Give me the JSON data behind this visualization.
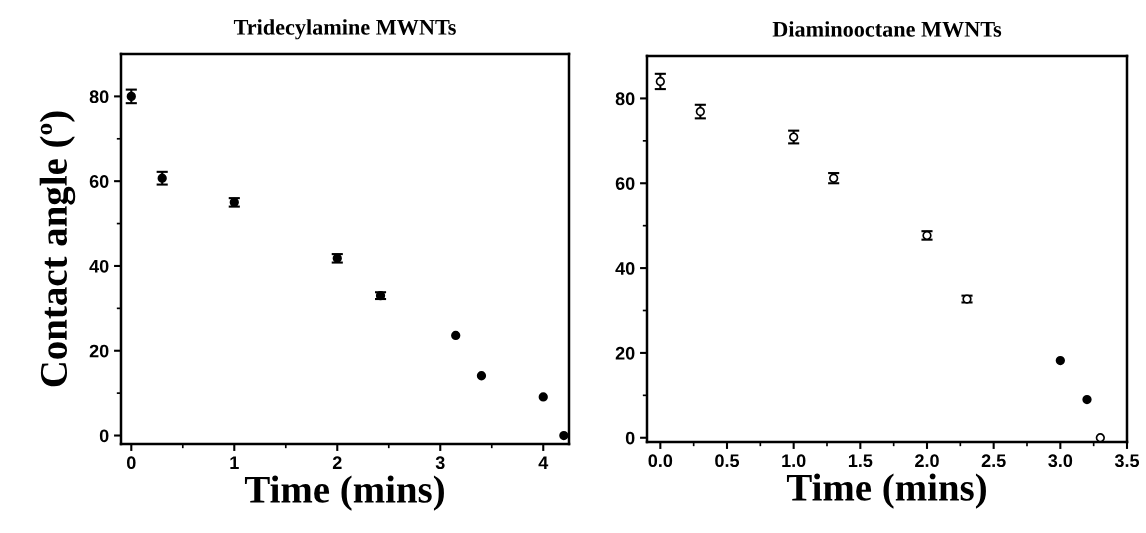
{
  "chart_data": [
    {
      "type": "scatter",
      "title": "Tridecylamine MWNTs",
      "xlabel": "Time (mins)",
      "ylabel": "Contact angle (º)",
      "marker": "circle",
      "grid": false,
      "xlim": [
        -0.1,
        4.25
      ],
      "xticks": [
        0,
        {
          "value": 0.5,
          "label": null
        },
        1,
        {
          "value": 1.5,
          "label": null
        },
        2,
        {
          "value": 2.5,
          "label": null
        },
        3,
        {
          "value": 3.5,
          "label": null
        },
        4
      ],
      "ylim": [
        -2,
        90
      ],
      "yticks": [
        0,
        {
          "value": 10,
          "label": null
        },
        20,
        {
          "value": 30,
          "label": null
        },
        40,
        {
          "value": 50,
          "label": null
        },
        60,
        {
          "value": 70,
          "label": null
        },
        80
      ],
      "x": [
        0,
        0.3,
        1.0,
        2.0,
        2.42,
        3.15,
        3.4,
        4.0,
        4.2
      ],
      "series": [
        {
          "color": "#000000",
          "values": [
            80,
            60.7,
            55,
            41.8,
            33,
            23.6,
            14.1,
            9.1,
            0
          ],
          "errors": [
            1.6,
            1.5,
            1.0,
            1.0,
            0.8,
            null,
            null,
            null,
            null
          ]
        }
      ]
    },
    {
      "type": "scatter",
      "title": "Diaminooctane MWNTs",
      "xlabel": "Time (mins)",
      "marker": "circle",
      "grid": false,
      "xlim": [
        -0.1,
        3.5
      ],
      "xticks": [
        {
          "value": 0,
          "label": "0.0"
        },
        {
          "value": 0.25,
          "label": null
        },
        0.5,
        {
          "value": 0.75,
          "label": null
        },
        {
          "value": 1,
          "label": "1.0"
        },
        {
          "value": 1.25,
          "label": null
        },
        1.5,
        {
          "value": 1.75,
          "label": null
        },
        {
          "value": 2,
          "label": "2.0"
        },
        {
          "value": 2.25,
          "label": null
        },
        2.5,
        {
          "value": 2.75,
          "label": null
        },
        {
          "value": 3,
          "label": "3.0"
        },
        {
          "value": 3.25,
          "label": null
        },
        3.5
      ],
      "ylim": [
        -1,
        90
      ],
      "yticks": [
        0,
        {
          "value": 10,
          "label": null
        },
        20,
        {
          "value": 30,
          "label": null
        },
        40,
        {
          "value": 50,
          "label": null
        },
        60,
        {
          "value": 70,
          "label": null
        },
        80
      ],
      "x": [
        0,
        0.3,
        1.0,
        1.3,
        2.0,
        2.3,
        3.0,
        3.2,
        3.3
      ],
      "series": [
        {
          "color": "#000000",
          "colors": [
            "#ffffff",
            "#ffffff",
            "#ffffff",
            "#ffffff",
            "#ffffff",
            "#ffffff",
            "#000000",
            "#000000",
            "#ffffff"
          ],
          "values": [
            84,
            76.9,
            70.9,
            61.2,
            47.7,
            32.7,
            18.2,
            9.0,
            0
          ],
          "errors": [
            1.8,
            1.6,
            1.5,
            1.2,
            1.0,
            0.8,
            null,
            null,
            null
          ]
        }
      ]
    }
  ]
}
